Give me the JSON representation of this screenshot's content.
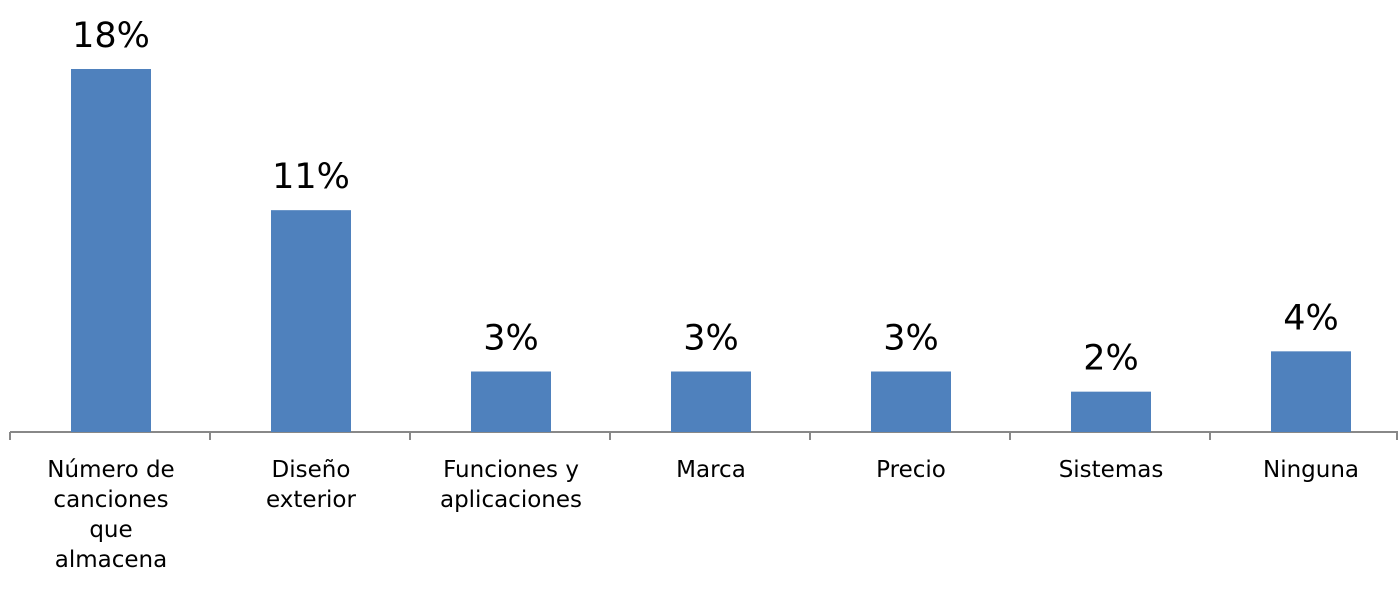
{
  "chart_data": {
    "type": "bar",
    "categories": [
      "Número de canciones que almacena",
      "Diseño exterior",
      "Funciones y aplicaciones",
      "Marca",
      "Precio",
      "Sistemas",
      "Ninguna"
    ],
    "values": [
      18,
      11,
      3,
      3,
      3,
      2,
      4
    ],
    "value_labels": [
      "18%",
      "11%",
      "3%",
      "3%",
      "3%",
      "2%",
      "4%"
    ],
    "color": "#4f81bd"
  }
}
